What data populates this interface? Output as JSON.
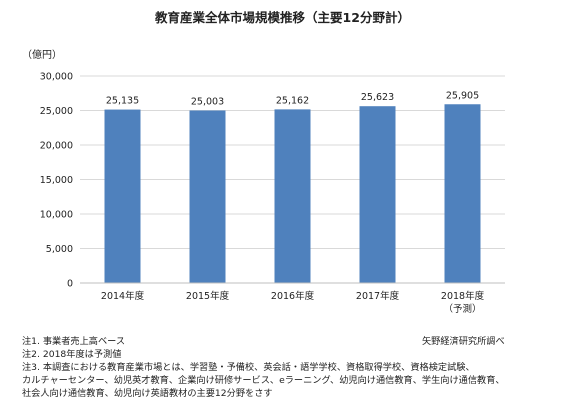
{
  "title": "教育産業全体市場規模推移（主要12分野計）",
  "unit_label": "（億円）",
  "chart_data": {
    "type": "bar",
    "categories": [
      "2014年度",
      "2015年度",
      "2016年度",
      "2017年度",
      "2018年度"
    ],
    "category_sublabels": [
      "",
      "",
      "",
      "",
      "（予測）"
    ],
    "values": [
      25135,
      25003,
      25162,
      25623,
      25905
    ],
    "value_labels": [
      "25,135",
      "25,003",
      "25,162",
      "25,623",
      "25,905"
    ],
    "ylim": [
      0,
      30000
    ],
    "yticks": [
      0,
      5000,
      10000,
      15000,
      20000,
      25000,
      30000
    ],
    "ytick_labels": [
      "0",
      "5,000",
      "10,000",
      "15,000",
      "20,000",
      "25,000",
      "30,000"
    ],
    "grid": true,
    "bar_color": "#4f81bd",
    "gridline_color": "#d9d9d9"
  },
  "notes": [
    "注1. 事業者売上高ベース",
    "注2. 2018年度は予測値",
    "注3. 本調査における教育産業市場とは、学習塾・予備校、英会話・語学学校、資格取得学校、資格検定試験、",
    "カルチャーセンター、幼児英才教育、企業向け研修サービス、eラーニング、幼児向け通信教育、学生向け通信教育、",
    "社会人向け通信教育、幼児向け英語教材の主要12分野をさす"
  ],
  "credit": "矢野経済研究所調べ"
}
